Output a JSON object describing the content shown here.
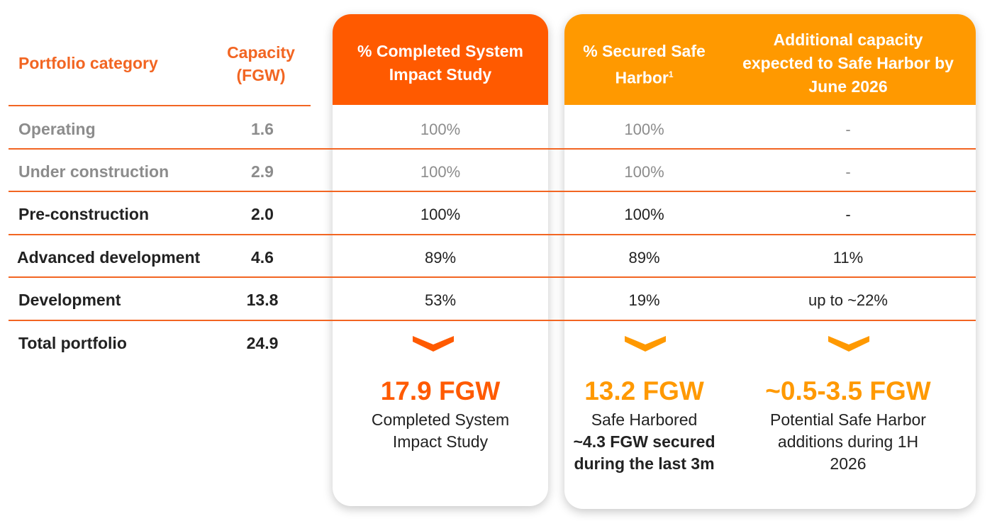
{
  "header": {
    "category": "Portfolio category",
    "capacity_line1": "Capacity",
    "capacity_line2": "(FGW)",
    "col1": "% Completed System Impact Study",
    "col2": "% Secured Safe Harbor",
    "col2_sup": "1",
    "col3": "Additional capacity expected to Safe Harbor by June 2026"
  },
  "rows": [
    {
      "category": "Operating",
      "capacity": "1.6",
      "sis": "100%",
      "safe_harbor": "100%",
      "additional": "-",
      "style": "grey"
    },
    {
      "category": "Under construction",
      "capacity": "2.9",
      "sis": "100%",
      "safe_harbor": "100%",
      "additional": "-",
      "style": "grey"
    },
    {
      "category": "Pre-construction",
      "capacity": "2.0",
      "sis": "100%",
      "safe_harbor": "100%",
      "additional": "-",
      "style": "dark"
    },
    {
      "category": "Advanced development",
      "capacity": "4.6",
      "sis": "89%",
      "safe_harbor": "89%",
      "additional": "11%",
      "style": "dark"
    },
    {
      "category": "Development",
      "capacity": "13.8",
      "sis": "53%",
      "safe_harbor": "19%",
      "additional": "up to ~22%",
      "style": "dark"
    }
  ],
  "total": {
    "category": "Total portfolio",
    "capacity": "24.9"
  },
  "summary": {
    "sis_value": "17.9 FGW",
    "sis_line1": "Completed System",
    "sis_line2": "Impact Study",
    "sh_value": "13.2 FGW",
    "sh_line1": "Safe Harbored",
    "sh_bold1": "~4.3 FGW secured",
    "sh_bold2": "during the last 3m",
    "add_value": "~0.5-3.5 FGW",
    "add_line1": "Potential Safe Harbor",
    "add_line2": "additions during 1H",
    "add_line3": "2026"
  },
  "colors": {
    "accent_orange": "#f26522",
    "sis_orange": "#ff5a00",
    "safe_harbor_amber": "#ff9900",
    "muted_grey": "#8c8c8c"
  }
}
